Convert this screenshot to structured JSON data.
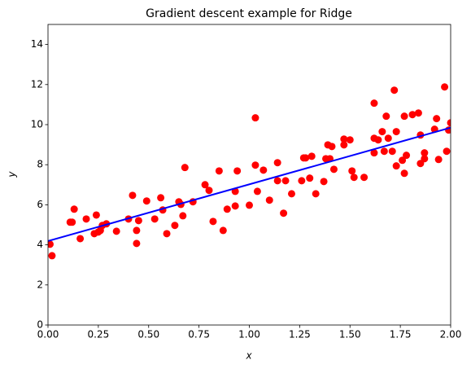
{
  "chart_data": {
    "type": "scatter",
    "title": "Gradient descent example for Ridge",
    "xlabel": "x",
    "ylabel": "y",
    "xlim": [
      0,
      2
    ],
    "ylim": [
      0,
      15
    ],
    "xticks": [
      {
        "value": 0,
        "label": "0.00"
      },
      {
        "value": 0.25,
        "label": "0.25"
      },
      {
        "value": 0.5,
        "label": "0.50"
      },
      {
        "value": 0.75,
        "label": "0.75"
      },
      {
        "value": 1,
        "label": "1.00"
      },
      {
        "value": 1.25,
        "label": "1.25"
      },
      {
        "value": 1.5,
        "label": "1.50"
      },
      {
        "value": 1.75,
        "label": "1.75"
      },
      {
        "value": 2,
        "label": "2.00"
      }
    ],
    "yticks": [
      0,
      2,
      4,
      6,
      8,
      10,
      12,
      14
    ],
    "grid": false,
    "scatter": {
      "color": "#ff0000",
      "x": [
        0.01,
        0.02,
        0.11,
        0.12,
        0.13,
        0.16,
        0.19,
        0.23,
        0.24,
        0.25,
        0.26,
        0.27,
        0.29,
        0.34,
        0.4,
        0.42,
        0.44,
        0.44,
        0.45,
        0.49,
        0.53,
        0.56,
        0.57,
        0.59,
        0.63,
        0.65,
        0.66,
        0.67,
        0.68,
        0.72,
        0.78,
        0.8,
        0.82,
        0.85,
        0.87,
        0.89,
        0.93,
        0.94,
        0.93,
        1.0,
        1.03,
        1.03,
        1.04,
        1.07,
        1.1,
        1.14,
        1.14,
        1.17,
        1.18,
        1.21,
        1.26,
        1.27,
        1.28,
        1.3,
        1.31,
        1.33,
        1.37,
        1.38,
        1.39,
        1.4,
        1.41,
        1.42,
        1.47,
        1.47,
        1.5,
        1.51,
        1.52,
        1.57,
        1.62,
        1.62,
        1.62,
        1.64,
        1.66,
        1.67,
        1.68,
        1.69,
        1.71,
        1.72,
        1.73,
        1.73,
        1.76,
        1.77,
        1.77,
        1.78,
        1.81,
        1.84,
        1.85,
        1.85,
        1.87,
        1.87,
        1.92,
        1.93,
        1.94,
        1.97,
        1.98,
        2.0,
        1.99
      ],
      "y": [
        4.03,
        3.46,
        5.13,
        5.13,
        5.78,
        4.31,
        5.29,
        4.56,
        5.49,
        4.64,
        4.72,
        4.97,
        5.05,
        4.68,
        5.29,
        6.47,
        4.72,
        4.07,
        5.21,
        6.19,
        5.29,
        6.35,
        5.74,
        4.56,
        4.97,
        6.15,
        6.02,
        5.45,
        7.86,
        6.15,
        7.0,
        6.72,
        5.17,
        7.69,
        4.72,
        5.78,
        5.94,
        7.69,
        6.67,
        5.98,
        10.34,
        7.98,
        6.67,
        7.73,
        6.23,
        8.1,
        7.2,
        5.58,
        7.2,
        6.55,
        7.2,
        8.34,
        8.34,
        7.33,
        8.42,
        6.55,
        7.16,
        8.3,
        8.99,
        8.3,
        8.91,
        7.77,
        8.99,
        9.28,
        9.24,
        7.69,
        7.37,
        7.37,
        11.07,
        8.59,
        9.32,
        9.24,
        9.65,
        8.67,
        10.42,
        9.32,
        8.67,
        11.72,
        9.65,
        7.94,
        8.22,
        10.42,
        7.57,
        8.47,
        10.5,
        10.58,
        8.06,
        9.48,
        8.59,
        8.3,
        9.77,
        10.3,
        8.26,
        11.88,
        8.67,
        10.09,
        9.73
      ]
    },
    "line": {
      "color": "#0000ff",
      "x": [
        0,
        2
      ],
      "y": [
        4.19,
        9.85
      ]
    }
  }
}
